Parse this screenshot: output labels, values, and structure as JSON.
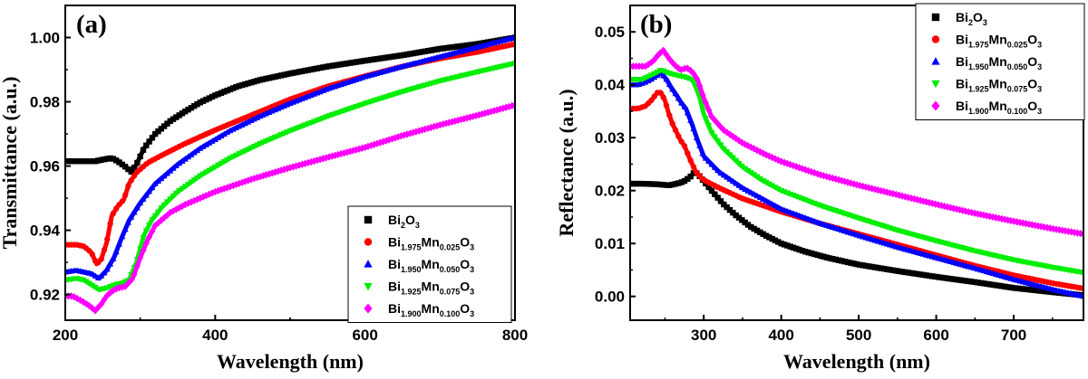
{
  "chart_data": [
    {
      "type": "line",
      "panel_label": "(a)",
      "xlabel": "Wavelength (nm)",
      "ylabel": "Transmittance (a.u.)",
      "xlim": [
        200,
        800
      ],
      "ylim": [
        0.912,
        1.01
      ],
      "xticks": [
        200,
        400,
        600,
        800
      ],
      "xtick_labels": [
        "200",
        "400",
        "600",
        "800"
      ],
      "yticks": [
        0.92,
        0.94,
        0.96,
        0.98,
        1.0
      ],
      "ytick_labels": [
        "0.92",
        "0.94",
        "0.96",
        "0.98",
        "1.00"
      ],
      "grid": false,
      "legend_position": "bottom-right",
      "series": [
        {
          "name": "Bi2O3",
          "label_parts": [
            [
              "Bi",
              ""
            ],
            [
              "2",
              "sub"
            ],
            [
              "O",
              ""
            ],
            [
              "3",
              "sub"
            ]
          ],
          "color": "#000000",
          "marker": "square",
          "x": [
            200,
            220,
            240,
            250,
            262,
            270,
            280,
            288,
            295,
            305,
            320,
            340,
            360,
            380,
            400,
            430,
            460,
            500,
            550,
            600,
            650,
            700,
            750,
            800
          ],
          "y": [
            0.9615,
            0.9615,
            0.9615,
            0.962,
            0.9625,
            0.9615,
            0.9598,
            0.9582,
            0.9605,
            0.9655,
            0.97,
            0.974,
            0.977,
            0.9798,
            0.982,
            0.9848,
            0.9868,
            0.9888,
            0.991,
            0.9928,
            0.9945,
            0.9965,
            0.998,
            1.0
          ]
        },
        {
          "name": "Bi1.975Mn0.025O3",
          "label_parts": [
            [
              "Bi",
              ""
            ],
            [
              "1.975",
              "sub"
            ],
            [
              "Mn",
              ""
            ],
            [
              "0.025",
              "sub"
            ],
            [
              "O",
              ""
            ],
            [
              "3",
              "sub"
            ]
          ],
          "color": "#ff0000",
          "marker": "circle",
          "x": [
            200,
            215,
            225,
            235,
            242,
            248,
            255,
            262,
            270,
            278,
            285,
            295,
            310,
            330,
            360,
            400,
            450,
            500,
            550,
            600,
            650,
            700,
            750,
            800
          ],
          "y": [
            0.9355,
            0.9355,
            0.935,
            0.933,
            0.9295,
            0.931,
            0.936,
            0.9445,
            0.9475,
            0.9495,
            0.9545,
            0.958,
            0.961,
            0.9635,
            0.967,
            0.9712,
            0.976,
            0.9808,
            0.9848,
            0.988,
            0.991,
            0.9935,
            0.9955,
            0.998
          ]
        },
        {
          "name": "Bi1.950Mn0.050O3",
          "label_parts": [
            [
              "Bi",
              ""
            ],
            [
              "1.950",
              "sub"
            ],
            [
              "Mn",
              ""
            ],
            [
              "0.050",
              "sub"
            ],
            [
              "O",
              ""
            ],
            [
              "3",
              "sub"
            ]
          ],
          "color": "#0000ff",
          "marker": "triangle-up",
          "x": [
            200,
            215,
            225,
            235,
            245,
            255,
            265,
            275,
            285,
            300,
            320,
            350,
            380,
            420,
            460,
            500,
            550,
            600,
            650,
            700,
            750,
            800
          ],
          "y": [
            0.927,
            0.9275,
            0.927,
            0.9265,
            0.925,
            0.9275,
            0.9315,
            0.9375,
            0.943,
            0.9485,
            0.9545,
            0.9605,
            0.9655,
            0.971,
            0.9755,
            0.9795,
            0.984,
            0.9878,
            0.991,
            0.994,
            0.997,
            1.0
          ]
        },
        {
          "name": "Bi1.925Mn0.075O3",
          "label_parts": [
            [
              "Bi",
              ""
            ],
            [
              "1.925",
              "sub"
            ],
            [
              "Mn",
              ""
            ],
            [
              "0.075",
              "sub"
            ],
            [
              "O",
              ""
            ],
            [
              "3",
              "sub"
            ]
          ],
          "color": "#00ee00",
          "marker": "triangle-down",
          "x": [
            200,
            215,
            225,
            235,
            245,
            255,
            265,
            275,
            285,
            295,
            305,
            315,
            330,
            350,
            380,
            420,
            460,
            500,
            550,
            600,
            650,
            700,
            750,
            800
          ],
          "y": [
            0.9245,
            0.925,
            0.9245,
            0.923,
            0.9215,
            0.922,
            0.923,
            0.9235,
            0.9245,
            0.93,
            0.9385,
            0.943,
            0.9475,
            0.952,
            0.957,
            0.9625,
            0.967,
            0.971,
            0.9755,
            0.9795,
            0.9832,
            0.9865,
            0.9893,
            0.992
          ]
        },
        {
          "name": "Bi1.900Mn0.100O3",
          "label_parts": [
            [
              "Bi",
              ""
            ],
            [
              "1.900",
              "sub"
            ],
            [
              "Mn",
              ""
            ],
            [
              "0.100",
              "sub"
            ],
            [
              "O",
              ""
            ],
            [
              "3",
              "sub"
            ]
          ],
          "color": "#ff00ff",
          "marker": "diamond",
          "x": [
            200,
            210,
            222,
            232,
            240,
            248,
            255,
            262,
            270,
            280,
            290,
            300,
            310,
            320,
            340,
            360,
            380,
            400,
            450,
            500,
            550,
            600,
            650,
            700,
            750,
            800
          ],
          "y": [
            0.9195,
            0.9195,
            0.918,
            0.9165,
            0.915,
            0.917,
            0.9195,
            0.921,
            0.922,
            0.9225,
            0.925,
            0.9315,
            0.937,
            0.9415,
            0.9455,
            0.948,
            0.95,
            0.952,
            0.956,
            0.9595,
            0.9627,
            0.9658,
            0.9695,
            0.9728,
            0.9758,
            0.979
          ]
        }
      ]
    },
    {
      "type": "line",
      "panel_label": "(b)",
      "xlabel": "Wavelength (nm)",
      "ylabel": "Reflectance (a.u.)",
      "xlim": [
        205,
        790
      ],
      "ylim": [
        -0.0045,
        0.055
      ],
      "xticks": [
        300,
        400,
        500,
        600,
        700
      ],
      "xtick_labels": [
        "300",
        "400",
        "500",
        "600",
        "700"
      ],
      "yticks": [
        0.0,
        0.01,
        0.02,
        0.03,
        0.04,
        0.05
      ],
      "ytick_labels": [
        "0.00",
        "0.01",
        "0.02",
        "0.03",
        "0.04",
        "0.05"
      ],
      "grid": false,
      "legend_position": "top-right",
      "series": [
        {
          "name": "Bi2O3",
          "label_parts": [
            [
              "Bi",
              ""
            ],
            [
              "2",
              "sub"
            ],
            [
              "O",
              ""
            ],
            [
              "3",
              "sub"
            ]
          ],
          "color": "#000000",
          "marker": "square",
          "x": [
            205,
            220,
            240,
            255,
            262,
            270,
            275,
            282,
            288,
            292,
            300,
            310,
            325,
            340,
            360,
            380,
            400,
            430,
            460,
            500,
            550,
            600,
            650,
            700,
            750,
            790
          ],
          "y": [
            0.0213,
            0.0213,
            0.0212,
            0.021,
            0.0212,
            0.0215,
            0.0218,
            0.0225,
            0.0235,
            0.0232,
            0.0218,
            0.02,
            0.0175,
            0.0155,
            0.0132,
            0.0115,
            0.01,
            0.0085,
            0.0073,
            0.006,
            0.0048,
            0.0037,
            0.0027,
            0.0016,
            0.0008,
            0.0002
          ]
        },
        {
          "name": "Bi1.975Mn0.025O3",
          "label_parts": [
            [
              "Bi",
              ""
            ],
            [
              "1.975",
              "sub"
            ],
            [
              "Mn",
              ""
            ],
            [
              "0.025",
              "sub"
            ],
            [
              "O",
              ""
            ],
            [
              "3",
              "sub"
            ]
          ],
          "color": "#ff0000",
          "marker": "circle",
          "x": [
            205,
            215,
            225,
            232,
            240,
            245,
            250,
            255,
            260,
            265,
            270,
            275,
            282,
            290,
            300,
            320,
            350,
            400,
            450,
            500,
            550,
            600,
            650,
            700,
            750,
            790
          ],
          "y": [
            0.0355,
            0.0355,
            0.036,
            0.037,
            0.0385,
            0.0385,
            0.037,
            0.0345,
            0.0325,
            0.031,
            0.0295,
            0.0285,
            0.026,
            0.0235,
            0.022,
            0.0205,
            0.0185,
            0.016,
            0.0138,
            0.0118,
            0.0098,
            0.0078,
            0.0058,
            0.004,
            0.0025,
            0.0015
          ]
        },
        {
          "name": "Bi1.950Mn0.050O3",
          "label_parts": [
            [
              "Bi",
              ""
            ],
            [
              "1.950",
              "sub"
            ],
            [
              "Mn",
              ""
            ],
            [
              "0.050",
              "sub"
            ],
            [
              "O",
              ""
            ],
            [
              "3",
              "sub"
            ]
          ],
          "color": "#0000ff",
          "marker": "triangle-up",
          "x": [
            205,
            215,
            225,
            232,
            240,
            245,
            252,
            258,
            265,
            270,
            277,
            285,
            292,
            300,
            320,
            350,
            400,
            450,
            500,
            550,
            600,
            650,
            700,
            750,
            790
          ],
          "y": [
            0.04,
            0.04,
            0.0405,
            0.041,
            0.0418,
            0.0422,
            0.041,
            0.0395,
            0.038,
            0.0368,
            0.0355,
            0.0325,
            0.0295,
            0.0265,
            0.0235,
            0.0205,
            0.0165,
            0.0138,
            0.0115,
            0.0093,
            0.0073,
            0.0053,
            0.0032,
            0.0013,
            0.0
          ]
        },
        {
          "name": "Bi1.925Mn0.075O3",
          "label_parts": [
            [
              "Bi",
              ""
            ],
            [
              "1.925",
              "sub"
            ],
            [
              "Mn",
              ""
            ],
            [
              "0.075",
              "sub"
            ],
            [
              "O",
              ""
            ],
            [
              "3",
              "sub"
            ]
          ],
          "color": "#00ee00",
          "marker": "triangle-down",
          "x": [
            205,
            220,
            235,
            245,
            255,
            265,
            275,
            285,
            290,
            295,
            300,
            310,
            325,
            350,
            375,
            400,
            450,
            500,
            550,
            600,
            650,
            700,
            750,
            790
          ],
          "y": [
            0.041,
            0.041,
            0.042,
            0.0428,
            0.0422,
            0.0418,
            0.0415,
            0.041,
            0.0395,
            0.0375,
            0.0345,
            0.031,
            0.028,
            0.0245,
            0.022,
            0.02,
            0.0172,
            0.0148,
            0.0125,
            0.0105,
            0.0086,
            0.0069,
            0.0055,
            0.0045
          ]
        },
        {
          "name": "Bi1.900Mn0.100O3",
          "label_parts": [
            [
              "Bi",
              ""
            ],
            [
              "1.900",
              "sub"
            ],
            [
              "Mn",
              ""
            ],
            [
              "0.100",
              "sub"
            ],
            [
              "O",
              ""
            ],
            [
              "3",
              "sub"
            ]
          ],
          "color": "#ff00ff",
          "marker": "diamond",
          "x": [
            205,
            215,
            225,
            235,
            242,
            248,
            255,
            262,
            270,
            278,
            285,
            292,
            300,
            310,
            325,
            350,
            380,
            400,
            450,
            500,
            550,
            600,
            650,
            700,
            750,
            790
          ],
          "y": [
            0.0435,
            0.0435,
            0.0435,
            0.0445,
            0.0458,
            0.0465,
            0.045,
            0.0438,
            0.0428,
            0.0432,
            0.0425,
            0.041,
            0.0375,
            0.034,
            0.0315,
            0.029,
            0.0268,
            0.0255,
            0.023,
            0.021,
            0.0192,
            0.0174,
            0.0157,
            0.0142,
            0.0128,
            0.0118
          ]
        }
      ]
    }
  ]
}
